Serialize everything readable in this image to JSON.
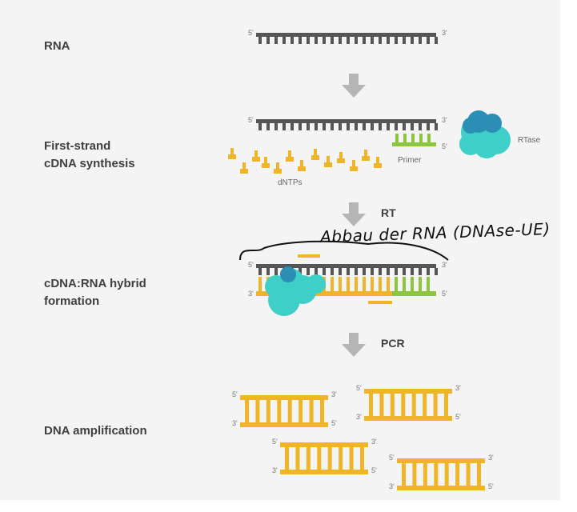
{
  "steps": [
    {
      "label": "RNA"
    },
    {
      "label": "First-strand\ncDNA synthesis"
    },
    {
      "label": "cDNA:RNA hybrid\nformation"
    },
    {
      "label": "DNA amplification"
    }
  ],
  "arrows": [
    {
      "label": ""
    },
    {
      "label": "RT"
    },
    {
      "label": "PCR"
    }
  ],
  "tags": {
    "primer": "Primer",
    "dntps": "dNTPs",
    "rtase": "RTase"
  },
  "ends": {
    "five": "5'",
    "three": "3'"
  },
  "handwritten_note": "Abbau der RNA (DNAse-UE)",
  "colors": {
    "rna": "#555555",
    "dna": "#f0b429",
    "primer": "#8cc63f",
    "enzyme": "#3ecfc8",
    "enzyme_dark": "#2b8fb5",
    "arrow": "#b5b5b5",
    "panel": "#f4f4f4"
  }
}
